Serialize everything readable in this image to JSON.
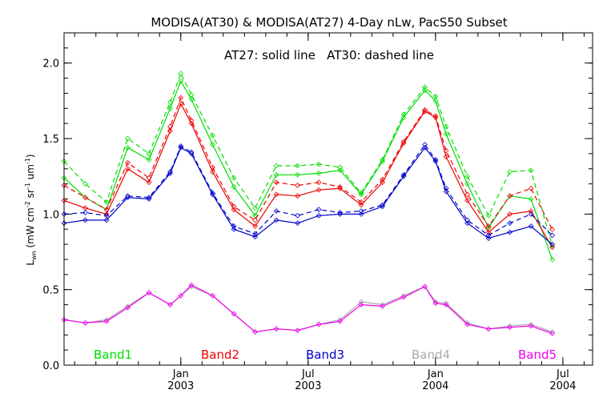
{
  "chart_data": {
    "type": "line",
    "title": "MODISA(AT30) & MODISA(AT27) 4-Day nLw, PacS50 Subset",
    "subtitle": "AT27: solid line   AT30: dashed line",
    "ylabel_main": "L",
    "ylabel_sub": "wn",
    "ylabel_rest": " (mW cm",
    "ylabel_exp1": "-2",
    "ylabel_mid": " sr",
    "ylabel_exp2": "-1",
    "ylabel_um": " um",
    "ylabel_exp3": "-1",
    "ylabel_close": ")",
    "ylim": [
      0.0,
      2.2
    ],
    "xlim": [
      0,
      24.9
    ],
    "y_ticks": [
      {
        "value": 0.0,
        "label": "0.0"
      },
      {
        "value": 0.5,
        "label": "0.5"
      },
      {
        "value": 1.0,
        "label": "1.0"
      },
      {
        "value": 1.5,
        "label": "1.5"
      },
      {
        "value": 2.0,
        "label": "2.0"
      }
    ],
    "x_ticks": [
      {
        "value": 5.5,
        "month": "Jan",
        "year": "2003"
      },
      {
        "value": 11.5,
        "month": "Jul",
        "year": "2003"
      },
      {
        "value": 17.5,
        "month": "Jan",
        "year": "2004"
      },
      {
        "value": 23.5,
        "month": "Jul",
        "year": "2004"
      }
    ],
    "x": [
      0,
      1,
      2,
      3,
      4,
      5,
      5.5,
      6,
      7,
      8,
      9,
      10,
      11,
      12,
      13,
      14,
      15,
      16,
      17,
      17.5,
      18,
      19,
      20,
      21,
      22,
      23,
      24,
      24.9
    ],
    "series": [
      {
        "name": "Band1",
        "color": "#00dd00",
        "style": "solid",
        "values": [
          1.24,
          1.11,
          1.03,
          1.44,
          1.36,
          1.7,
          1.88,
          1.76,
          1.46,
          1.18,
          0.99,
          1.26,
          1.26,
          1.27,
          1.29,
          1.13,
          1.35,
          1.64,
          1.82,
          1.75,
          1.53,
          1.2,
          0.91,
          1.12,
          1.1,
          0.7,
          null,
          null
        ]
      },
      {
        "name": "Band1 AT30",
        "color": "#00dd00",
        "style": "dashed",
        "values": [
          1.35,
          1.2,
          1.08,
          1.5,
          1.4,
          1.74,
          1.93,
          1.79,
          1.52,
          1.24,
          1.04,
          1.32,
          1.32,
          1.33,
          1.31,
          1.14,
          1.36,
          1.66,
          1.84,
          1.78,
          1.58,
          1.25,
          0.99,
          1.28,
          1.29,
          0.79,
          null,
          null
        ]
      },
      {
        "name": "Band2",
        "color": "#ee0000",
        "style": "solid",
        "values": [
          1.09,
          1.04,
          1.0,
          1.3,
          1.21,
          1.55,
          1.73,
          1.6,
          1.28,
          1.03,
          0.92,
          1.13,
          1.12,
          1.16,
          1.17,
          1.06,
          1.21,
          1.47,
          1.68,
          1.64,
          1.38,
          1.09,
          0.88,
          1.0,
          1.02,
          0.78,
          null,
          null
        ]
      },
      {
        "name": "Band2 AT30",
        "color": "#ee0000",
        "style": "dashed",
        "values": [
          1.19,
          1.11,
          1.03,
          1.34,
          1.24,
          1.58,
          1.77,
          1.62,
          1.31,
          1.05,
          0.96,
          1.21,
          1.19,
          1.21,
          1.18,
          1.08,
          1.23,
          1.48,
          1.69,
          1.65,
          1.42,
          1.13,
          0.92,
          1.12,
          1.17,
          0.9,
          null,
          null
        ]
      },
      {
        "name": "Band3",
        "color": "#0000cc",
        "style": "solid",
        "values": [
          0.94,
          0.96,
          0.96,
          1.11,
          1.1,
          1.27,
          1.44,
          1.4,
          1.13,
          0.9,
          0.85,
          0.96,
          0.94,
          0.99,
          1.0,
          1.0,
          1.05,
          1.25,
          1.44,
          1.35,
          1.15,
          0.94,
          0.84,
          0.88,
          0.92,
          0.8,
          null,
          null
        ]
      },
      {
        "name": "Band3 AT30",
        "color": "#0000cc",
        "style": "dashed",
        "values": [
          1.0,
          1.01,
          0.99,
          1.12,
          1.11,
          1.28,
          1.45,
          1.41,
          1.14,
          0.92,
          0.87,
          1.02,
          0.99,
          1.03,
          1.01,
          1.02,
          1.06,
          1.26,
          1.46,
          1.36,
          1.17,
          0.96,
          0.86,
          0.94,
          1.0,
          0.86,
          null,
          null
        ]
      },
      {
        "name": "Band4",
        "color": "#aaaaaa",
        "style": "solid",
        "values": [
          0.3,
          0.28,
          0.3,
          0.39,
          0.48,
          0.4,
          0.46,
          0.52,
          0.46,
          0.34,
          0.22,
          0.24,
          0.23,
          0.27,
          0.3,
          0.42,
          0.4,
          0.46,
          0.52,
          0.42,
          0.41,
          0.28,
          0.24,
          0.26,
          0.27,
          0.22,
          null,
          null
        ]
      },
      {
        "name": "Band5",
        "color": "#ee00ee",
        "style": "solid",
        "values": [
          0.3,
          0.28,
          0.29,
          0.38,
          0.48,
          0.4,
          0.46,
          0.53,
          0.46,
          0.34,
          0.22,
          0.24,
          0.23,
          0.27,
          0.29,
          0.4,
          0.39,
          0.45,
          0.52,
          0.41,
          0.4,
          0.27,
          0.24,
          0.25,
          0.26,
          0.21,
          null,
          null
        ]
      }
    ],
    "legend": [
      {
        "label": "Band1",
        "color": "#00dd00"
      },
      {
        "label": "Band2",
        "color": "#ee0000"
      },
      {
        "label": "Band3",
        "color": "#0000cc"
      },
      {
        "label": "Band4",
        "color": "#aaaaaa"
      },
      {
        "label": "Band5",
        "color": "#ee00ee"
      }
    ],
    "legend_placement": "bottom inside plot",
    "grid": false
  }
}
